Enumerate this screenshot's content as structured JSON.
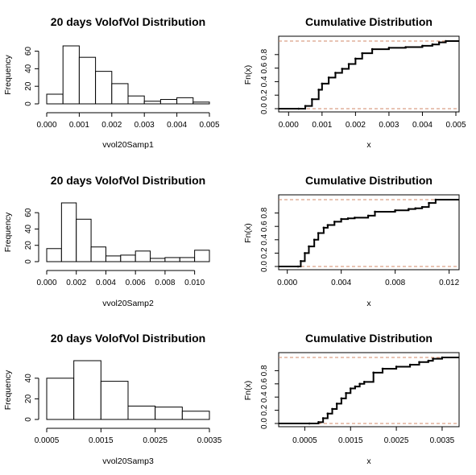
{
  "figure": {
    "grid": false,
    "colors": {
      "ink": "#000000",
      "reference_line": "#d08a6a",
      "background": "#ffffff"
    }
  },
  "chart_data": [
    {
      "type": "bar",
      "subtype": "histogram",
      "title": "20 days VolofVol Distribution",
      "xlabel": "vvol20Samp1",
      "ylabel": "Frequency",
      "bin_edges": [
        0.0,
        0.0005,
        0.001,
        0.0015,
        0.002,
        0.0025,
        0.003,
        0.0035,
        0.004,
        0.0045,
        0.005
      ],
      "values": [
        11,
        66,
        53,
        37,
        23,
        9,
        3,
        5,
        7,
        2
      ],
      "xlim": [
        0.0,
        0.005
      ],
      "ylim": [
        0,
        66
      ],
      "xticks": [
        0.0,
        0.001,
        0.002,
        0.003,
        0.004,
        0.005
      ],
      "xtick_labels": [
        "0.000",
        "0.001",
        "0.002",
        "0.003",
        "0.004",
        "0.005"
      ],
      "yticks": [
        0,
        20,
        40,
        60
      ],
      "ytick_labels": [
        "0",
        "20",
        "40",
        "60"
      ]
    },
    {
      "type": "line",
      "subtype": "empirical cdf",
      "title": "Cumulative Distribution",
      "xlabel": "x",
      "ylabel": "Fn(x)",
      "xlim": [
        -0.0002,
        0.005
      ],
      "ylim": [
        0,
        1
      ],
      "xticks": [
        0.0,
        0.001,
        0.002,
        0.003,
        0.004,
        0.005
      ],
      "xtick_labels": [
        "0.000",
        "0.001",
        "0.002",
        "0.003",
        "0.004",
        "0.005"
      ],
      "yticks": [
        0,
        0.2,
        0.4,
        0.6,
        0.8
      ],
      "ytick_labels": [
        "0.0",
        "0.2",
        "0.4",
        "0.6",
        "0.8"
      ],
      "reference_lines_y": [
        0,
        1
      ],
      "series": [
        {
          "x": [
            0.0003,
            0.0005,
            0.0007,
            0.0009,
            0.001,
            0.0012,
            0.0014,
            0.0016,
            0.0018,
            0.002,
            0.0022,
            0.0025,
            0.003,
            0.0035,
            0.004,
            0.0043,
            0.0045,
            0.0047
          ],
          "y": [
            0.0,
            0.04,
            0.14,
            0.28,
            0.37,
            0.46,
            0.53,
            0.59,
            0.66,
            0.74,
            0.82,
            0.88,
            0.9,
            0.91,
            0.93,
            0.95,
            0.98,
            1.0
          ]
        }
      ]
    },
    {
      "type": "bar",
      "subtype": "histogram",
      "title": "20 days VolofVol Distribution",
      "xlabel": "vvol20Samp2",
      "ylabel": "Frequency",
      "bin_edges": [
        0.0,
        0.001,
        0.002,
        0.003,
        0.004,
        0.005,
        0.006,
        0.007,
        0.008,
        0.009,
        0.01,
        0.011
      ],
      "values": [
        16,
        72,
        52,
        18,
        7,
        8,
        13,
        4,
        5,
        5,
        14
      ],
      "xlim": [
        0.0,
        0.011
      ],
      "ylim": [
        0,
        72
      ],
      "xticks": [
        0.0,
        0.002,
        0.004,
        0.006,
        0.008,
        0.01
      ],
      "xtick_labels": [
        "0.000",
        "0.002",
        "0.004",
        "0.006",
        "0.008",
        "0.010"
      ],
      "yticks": [
        0,
        20,
        40,
        60
      ],
      "ytick_labels": [
        "0",
        "20",
        "40",
        "60"
      ]
    },
    {
      "type": "line",
      "subtype": "empirical cdf",
      "title": "Cumulative Distribution",
      "xlabel": "x",
      "ylabel": "Fn(x)",
      "xlim": [
        -0.0004,
        0.0125
      ],
      "ylim": [
        0,
        1
      ],
      "xticks": [
        0.0,
        0.004,
        0.008,
        0.012
      ],
      "xtick_labels": [
        "0.000",
        "0.004",
        "0.008",
        "0.012"
      ],
      "yticks": [
        0,
        0.2,
        0.4,
        0.6,
        0.8
      ],
      "ytick_labels": [
        "0.0",
        "0.2",
        "0.4",
        "0.6",
        "0.8"
      ],
      "reference_lines_y": [
        0,
        1
      ],
      "series": [
        {
          "x": [
            0.0008,
            0.001,
            0.0013,
            0.0016,
            0.002,
            0.0023,
            0.0027,
            0.003,
            0.0035,
            0.004,
            0.0045,
            0.005,
            0.006,
            0.0065,
            0.008,
            0.009,
            0.0095,
            0.01,
            0.0105,
            0.011
          ],
          "y": [
            0.0,
            0.08,
            0.2,
            0.3,
            0.4,
            0.5,
            0.58,
            0.62,
            0.67,
            0.71,
            0.72,
            0.73,
            0.76,
            0.82,
            0.84,
            0.86,
            0.87,
            0.89,
            0.95,
            1.0
          ]
        }
      ]
    },
    {
      "type": "bar",
      "subtype": "histogram",
      "title": "20 days VolofVol Distribution",
      "xlabel": "vvol20Samp3",
      "ylabel": "Frequency",
      "bin_edges": [
        0.0005,
        0.001,
        0.0015,
        0.002,
        0.0025,
        0.003,
        0.0035
      ],
      "values": [
        40,
        57,
        37,
        13,
        12,
        8
      ],
      "xlim": [
        0.0005,
        0.0035
      ],
      "ylim": [
        0,
        57
      ],
      "xticks": [
        0.0005,
        0.0015,
        0.0025,
        0.0035
      ],
      "xtick_labels": [
        "0.0005",
        "0.0015",
        "0.0025",
        "0.0035"
      ],
      "yticks": [
        0,
        20,
        40
      ],
      "ytick_labels": [
        "0",
        "20",
        "40"
      ]
    },
    {
      "type": "line",
      "subtype": "empirical cdf",
      "title": "Cumulative Distribution",
      "xlabel": "x",
      "ylabel": "Fn(x)",
      "xlim": [
        0.0,
        0.0038
      ],
      "ylim": [
        0,
        1
      ],
      "xticks": [
        0.0005,
        0.0015,
        0.0025,
        0.0035
      ],
      "xtick_labels": [
        "0.0005",
        "0.0015",
        "0.0025",
        "0.0035"
      ],
      "yticks": [
        0,
        0.2,
        0.4,
        0.6,
        0.8
      ],
      "ytick_labels": [
        "0.0",
        "0.2",
        "0.4",
        "0.6",
        "0.8"
      ],
      "reference_lines_y": [
        0,
        1
      ],
      "series": [
        {
          "x": [
            0.0006,
            0.0008,
            0.0009,
            0.001,
            0.0011,
            0.0012,
            0.0013,
            0.0014,
            0.0015,
            0.0016,
            0.0017,
            0.0018,
            0.002,
            0.0022,
            0.0025,
            0.0028,
            0.003,
            0.0032,
            0.0033,
            0.0035
          ],
          "y": [
            0.0,
            0.02,
            0.08,
            0.15,
            0.22,
            0.3,
            0.38,
            0.46,
            0.53,
            0.56,
            0.6,
            0.63,
            0.77,
            0.83,
            0.86,
            0.89,
            0.93,
            0.95,
            0.98,
            1.0
          ]
        }
      ]
    }
  ]
}
